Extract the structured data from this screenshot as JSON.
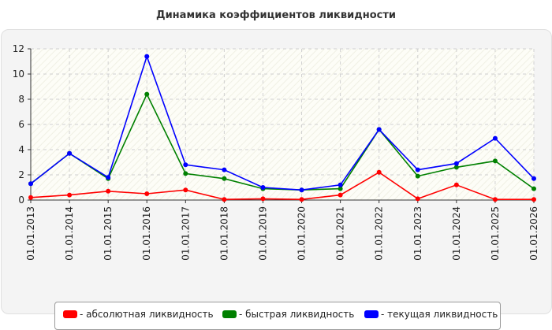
{
  "chart_data": {
    "type": "line",
    "title": "Динамика коэффициентов ликвидности",
    "xlabel": "",
    "ylabel": "",
    "ylim": [
      0,
      12
    ],
    "yticks": [
      "0",
      "2",
      "4",
      "6",
      "8",
      "10",
      "12"
    ],
    "categories": [
      "01.01.2013",
      "01.01.2014",
      "01.01.2015",
      "01.01.2016",
      "01.01.2017",
      "01.01.2018",
      "01.01.2019",
      "01.01.2020",
      "01.01.2021",
      "01.01.2022",
      "01.01.2023",
      "01.01.2024",
      "01.01.2025",
      "01.01.2026"
    ],
    "grid": true,
    "legend_position": "bottom",
    "series": [
      {
        "name": "- абсолютная ликвидность",
        "color": "#ff0000",
        "values": [
          0.2,
          0.4,
          0.7,
          0.5,
          0.8,
          0.05,
          0.1,
          0.05,
          0.4,
          2.2,
          0.1,
          1.2,
          0.05,
          0.05
        ]
      },
      {
        "name": "- быстрая ликвидность",
        "color": "#008000",
        "values": [
          1.3,
          3.7,
          1.7,
          8.4,
          2.1,
          1.7,
          0.9,
          0.8,
          0.9,
          5.6,
          1.9,
          2.6,
          3.1,
          0.9
        ]
      },
      {
        "name": "- текущая ликвидность",
        "color": "#0000ff",
        "values": [
          1.3,
          3.7,
          1.8,
          11.4,
          2.8,
          2.4,
          1.0,
          0.8,
          1.2,
          5.6,
          2.4,
          2.9,
          4.9,
          1.7
        ]
      }
    ]
  }
}
